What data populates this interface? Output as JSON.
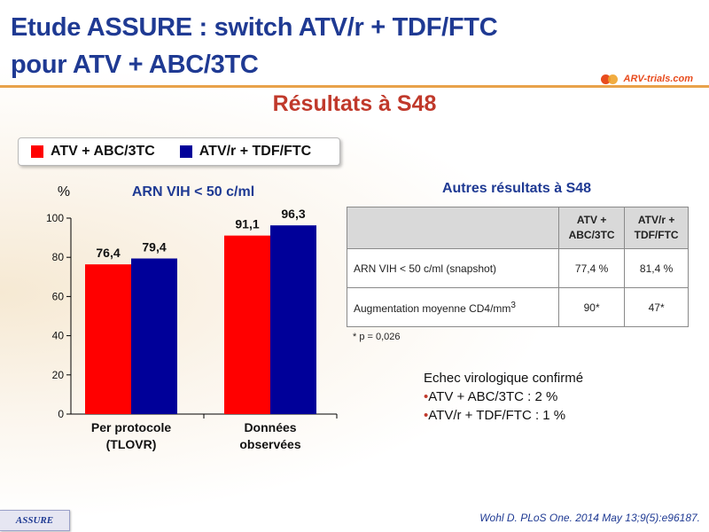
{
  "title": {
    "line1": "Etude ASSURE : switch ATV/r + TDF/FTC",
    "line2": "pour ATV + ABC/3TC"
  },
  "logo": {
    "text": "ARV-trials.com"
  },
  "subtitle": "Résultats à S48",
  "colors": {
    "red": "#ff0000",
    "navy": "#000099",
    "title": "#1f3a93",
    "subtitle": "#c0392b"
  },
  "chart_data": {
    "type": "bar",
    "title": "ARN VIH < 50 c/ml",
    "ylabel": "%",
    "xlabel": "",
    "ylim": [
      0,
      100
    ],
    "yticks": [
      "0",
      "20",
      "40",
      "60",
      "80",
      "100"
    ],
    "categories": [
      "Per protocole\n(TLOVR)",
      "Données\nobservées"
    ],
    "series": [
      {
        "name": "ATV + ABC/3TC",
        "color": "#ff0000",
        "values": [
          76.4,
          91.1
        ],
        "labels": [
          "76,4",
          "91,1"
        ]
      },
      {
        "name": "ATV/r + TDF/FTC",
        "color": "#000099",
        "values": [
          79.4,
          96.3
        ],
        "labels": [
          "79,4",
          "96,3"
        ]
      }
    ],
    "grid": false,
    "legend": "top-left"
  },
  "results": {
    "title": "Autres résultats à S48",
    "headers": [
      "ATV +\nABC/3TC",
      "ATV/r +\nTDF/FTC"
    ],
    "rows": [
      {
        "label": "ARN VIH < 50 c/ml (snapshot)",
        "label_sup": "",
        "values": [
          "77,4 %",
          "81,4 %"
        ]
      },
      {
        "label": "Augmentation moyenne CD4/mm",
        "label_sup": "3",
        "values": [
          "90*",
          "47*"
        ]
      }
    ],
    "footnote": "* p = 0,026"
  },
  "echec": {
    "title": "Echec virologique confirmé",
    "bullet": "•",
    "items": [
      "ATV  + ABC/3TC  : 2 %",
      "ATV/r  + TDF/FTC  : 1 %"
    ]
  },
  "badge": "ASSURE",
  "citation": "Wohl D. PLoS One. 2014 May 13;9(5):e96187."
}
